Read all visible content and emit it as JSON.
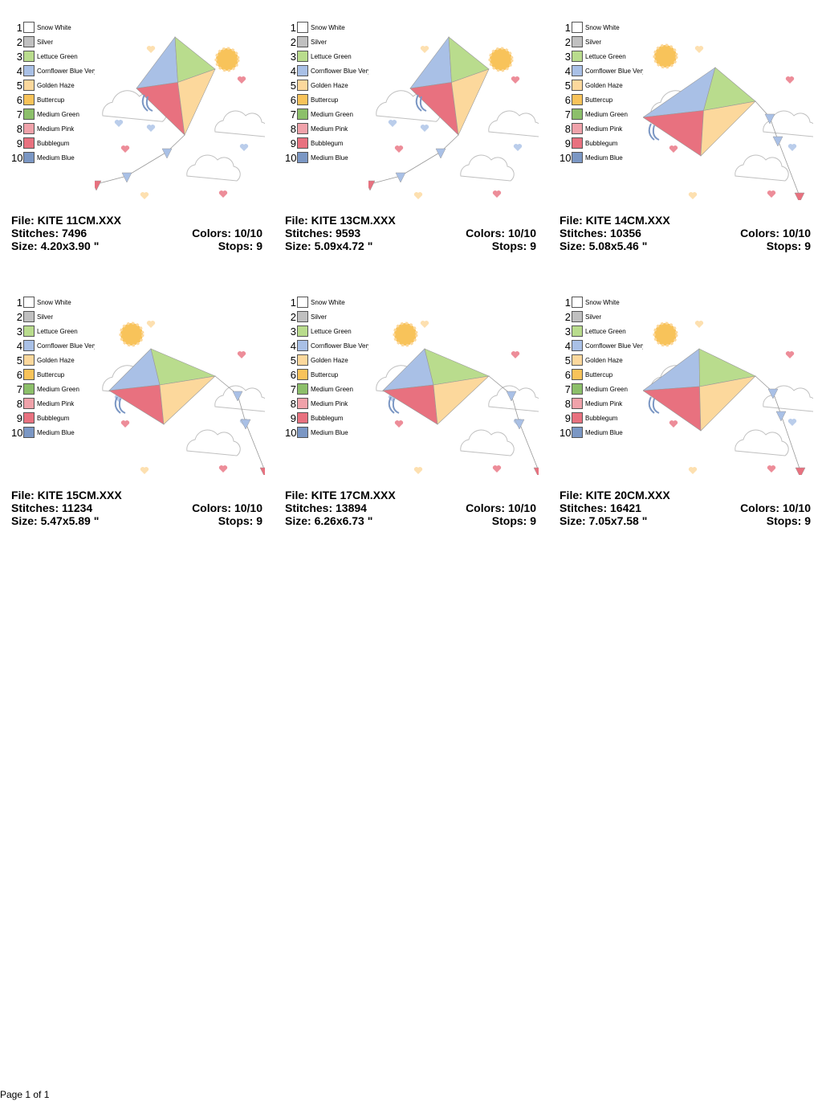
{
  "palette": [
    {
      "number": "1",
      "name": "Snow White",
      "color": "#ffffff"
    },
    {
      "number": "2",
      "name": "Silver",
      "color": "#c0c0c0"
    },
    {
      "number": "3",
      "name": "Lettuce Green",
      "color": "#b9dc8d"
    },
    {
      "number": "4",
      "name": "Cornflower Blue Very",
      "color": "#a9c0e6"
    },
    {
      "number": "5",
      "name": "Golden Haze",
      "color": "#fcd89c"
    },
    {
      "number": "6",
      "name": "Buttercup",
      "color": "#f8c35a"
    },
    {
      "number": "7",
      "name": "Medium Green",
      "color": "#8cbf6a"
    },
    {
      "number": "8",
      "name": "Medium Pink",
      "color": "#f0a2aa"
    },
    {
      "number": "9",
      "name": "Bubblegum",
      "color": "#e8717f"
    },
    {
      "number": "10",
      "name": "Medium Blue",
      "color": "#7b97c4"
    }
  ],
  "designs": [
    {
      "file": "File: KITE 11CM.XXX",
      "stitches": "Stitches: 7496",
      "colors": "Colors: 10/10",
      "size": "Size: 4.20x3.90 \"",
      "stops": "Stops: 9"
    },
    {
      "file": "File: KITE 13CM.XXX",
      "stitches": "Stitches: 9593",
      "colors": "Colors: 10/10",
      "size": "Size: 5.09x4.72 \"",
      "stops": "Stops: 9"
    },
    {
      "file": "File: KITE 14CM.XXX",
      "stitches": "Stitches: 10356",
      "colors": "Colors: 10/10",
      "size": "Size: 5.08x5.46 \"",
      "stops": "Stops: 9"
    },
    {
      "file": "File: KITE 15CM.XXX",
      "stitches": "Stitches: 11234",
      "colors": "Colors: 10/10",
      "size": "Size: 5.47x5.89 \"",
      "stops": "Stops: 9"
    },
    {
      "file": "File: KITE 17CM.XXX",
      "stitches": "Stitches: 13894",
      "colors": "Colors: 10/10",
      "size": "Size: 6.26x6.73 \"",
      "stops": "Stops: 9"
    },
    {
      "file": "File: KITE 20CM.XXX",
      "stitches": "Stitches: 16421",
      "colors": "Colors: 10/10",
      "size": "Size: 7.05x7.58 \"",
      "stops": "Stops: 9"
    }
  ],
  "footer": "Page 1 of 1"
}
